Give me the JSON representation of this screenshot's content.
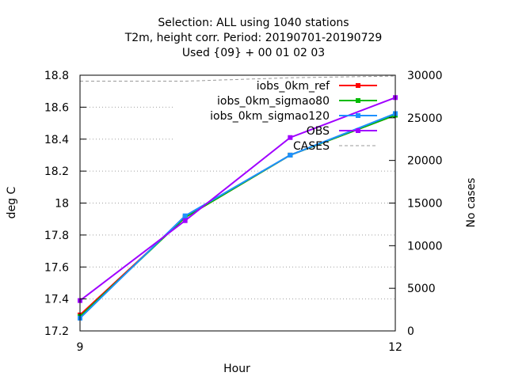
{
  "chart_data": {
    "type": "line",
    "title_lines": [
      "Selection: ALL using  1040 stations",
      "T2m, height corr.   Period: 20190701-20190729",
      "Used {09} + 00 01 02 03"
    ],
    "xlabel": "Hour",
    "ylabel": "deg C",
    "y2label": "No cases",
    "xlim": [
      9,
      12
    ],
    "ylim": [
      17.2,
      18.8
    ],
    "y2lim": [
      0,
      30000
    ],
    "x_ticks": [
      "9",
      "12"
    ],
    "y_ticks": [
      "17.2",
      "17.4",
      "17.6",
      "17.8",
      "18",
      "18.2",
      "18.4",
      "18.6",
      "18.8"
    ],
    "y2_ticks": [
      "0",
      "5000",
      "10000",
      "15000",
      "20000",
      "25000",
      "30000"
    ],
    "grid": true,
    "legend_position": "top-right",
    "x": [
      9,
      10,
      11,
      12
    ],
    "series": [
      {
        "name": "iobs_0km_ref",
        "color": "#ff0000",
        "values": [
          17.3,
          17.91,
          18.3,
          18.55
        ]
      },
      {
        "name": "iobs_0km_sigmao80",
        "color": "#00bb00",
        "values": [
          17.29,
          17.91,
          18.3,
          18.55
        ]
      },
      {
        "name": "iobs_0km_sigmao120",
        "color": "#1e90ff",
        "values": [
          17.28,
          17.92,
          18.3,
          18.56
        ]
      },
      {
        "name": "OBS",
        "color": "#a000ff",
        "values": [
          17.39,
          17.89,
          18.41,
          18.66
        ]
      }
    ],
    "cases": {
      "name": "CASES",
      "color": "#999999",
      "values": [
        29300,
        29300,
        29700,
        29900
      ]
    }
  }
}
